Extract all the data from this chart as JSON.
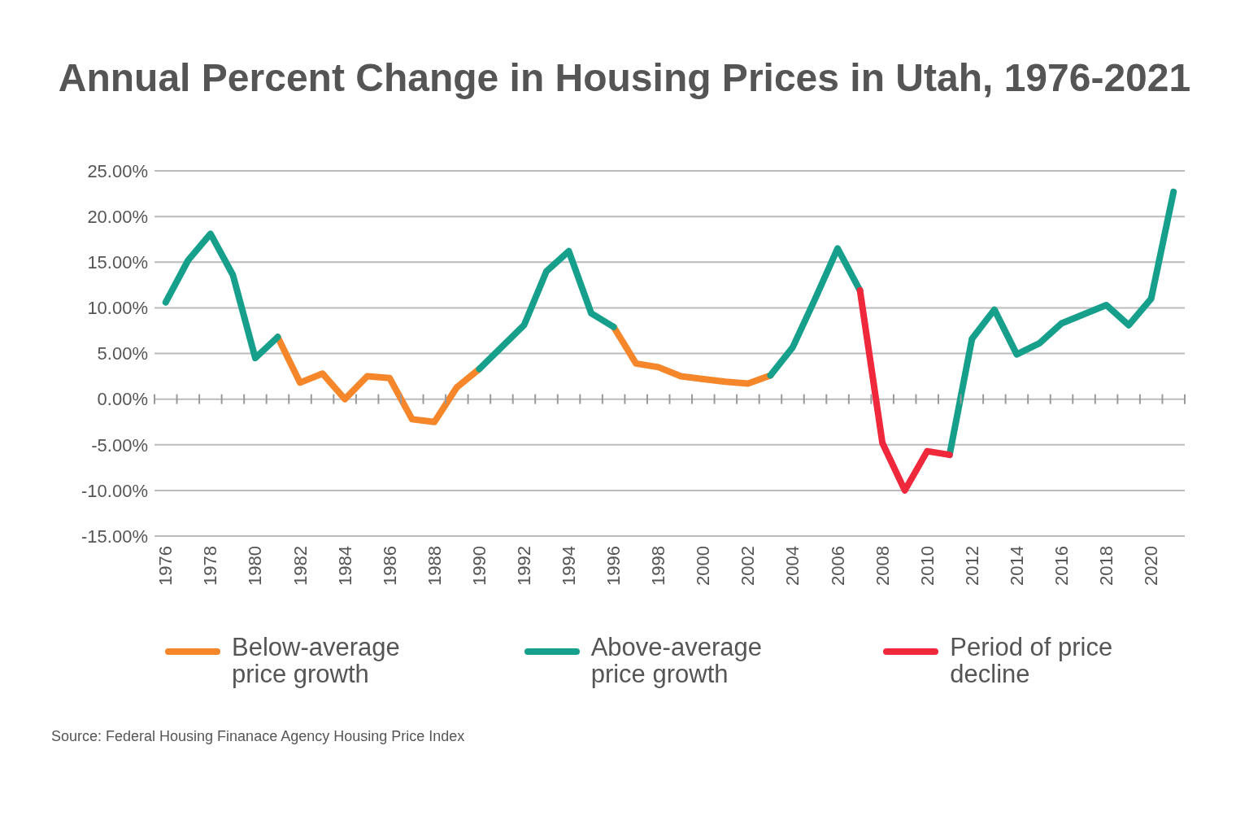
{
  "chart_data": {
    "type": "line",
    "title": "Annual Percent Change in Housing Prices in Utah, 1976-2021",
    "categories": [
      "1976",
      null,
      "1978",
      null,
      "1980",
      null,
      "1982",
      null,
      "1984",
      null,
      "1986",
      null,
      "1988",
      null,
      "1990",
      null,
      "1992",
      null,
      "1994",
      null,
      "1996",
      null,
      "1998",
      null,
      "2000",
      null,
      "2002",
      null,
      "2004",
      null,
      "2006",
      null,
      "2008",
      null,
      "2010",
      null,
      "2012",
      null,
      "2014",
      null,
      "2016",
      null,
      "2018",
      null,
      "2020",
      null
    ],
    "series": [
      {
        "name": "Below-average price growth",
        "color": "#f5862a",
        "values": [
          null,
          null,
          null,
          null,
          null,
          6.8,
          1.8,
          2.8,
          0,
          2.5,
          2.3,
          -2.2,
          -2.5,
          1.3,
          3.3,
          null,
          null,
          null,
          null,
          null,
          7.9,
          3.9,
          3.5,
          2.5,
          2.2,
          1.9,
          1.7,
          2.6,
          null,
          null,
          null,
          null,
          null,
          null,
          null,
          null,
          null,
          null,
          null,
          null,
          null,
          null,
          null,
          null,
          null,
          null
        ]
      },
      {
        "name": "Above-average price growth",
        "color": "#16a08c",
        "values": [
          10.6,
          15.2,
          18.1,
          13.6,
          4.5,
          6.8,
          null,
          null,
          null,
          null,
          null,
          null,
          null,
          null,
          3.3,
          5.7,
          8.1,
          14.0,
          16.2,
          9.4,
          7.9,
          null,
          null,
          null,
          null,
          null,
          null,
          2.6,
          5.7,
          11.0,
          16.5,
          11.9,
          null,
          null,
          null,
          -6.1,
          6.6,
          9.8,
          4.9,
          6.1,
          8.3,
          9.3,
          10.3,
          8.1,
          11.0,
          22.7
        ]
      },
      {
        "name": "Period of price decline",
        "color": "#f0283c",
        "values": [
          null,
          null,
          null,
          null,
          null,
          null,
          null,
          null,
          null,
          null,
          null,
          null,
          null,
          null,
          null,
          null,
          null,
          null,
          null,
          null,
          null,
          null,
          null,
          null,
          null,
          null,
          null,
          null,
          null,
          null,
          null,
          11.9,
          -4.8,
          -10.0,
          -5.7,
          -6.1,
          null,
          null,
          null,
          null,
          null,
          null,
          null,
          null,
          null,
          null
        ]
      }
    ],
    "ylim": [
      -15,
      25
    ],
    "yticks": [
      {
        "value": -15,
        "label": "-15.00%"
      },
      {
        "value": -10,
        "label": "-10.00%"
      },
      {
        "value": -5,
        "label": "-5.00%"
      },
      {
        "value": 0,
        "label": "0.00%"
      },
      {
        "value": 5,
        "label": "5.00%"
      },
      {
        "value": 10,
        "label": "10.00%"
      },
      {
        "value": 15,
        "label": "15.00%"
      },
      {
        "value": 20,
        "label": "20.00%"
      },
      {
        "value": 25,
        "label": "25.00%"
      }
    ],
    "grid": "y",
    "legend": "bottom",
    "line_style": "solid",
    "annotations": [
      "Source: Federal Housing Finanace Agency Housing Price Index"
    ]
  }
}
